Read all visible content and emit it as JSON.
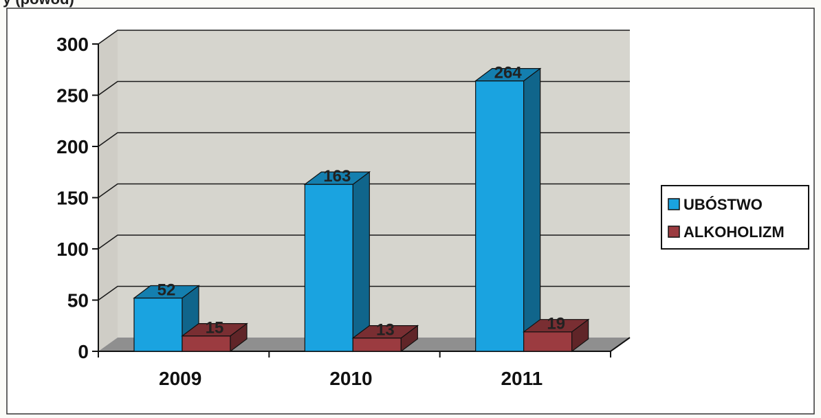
{
  "chart_data": {
    "type": "bar",
    "categories": [
      "2009",
      "2010",
      "2011"
    ],
    "series": [
      {
        "name": "UBÓSTWO",
        "values": [
          52,
          163,
          264
        ],
        "color": "#1aa3e0"
      },
      {
        "name": "ALKOHOLIZM",
        "values": [
          15,
          13,
          19
        ],
        "color": "#9b3b40"
      }
    ],
    "ylim": [
      0,
      300
    ],
    "yticks": [
      "0",
      "50",
      "100",
      "150",
      "200",
      "250",
      "300"
    ],
    "grid": true,
    "legend": "right",
    "style": "3d-clustered-column"
  },
  "top_text_fragment": "y (powod)"
}
